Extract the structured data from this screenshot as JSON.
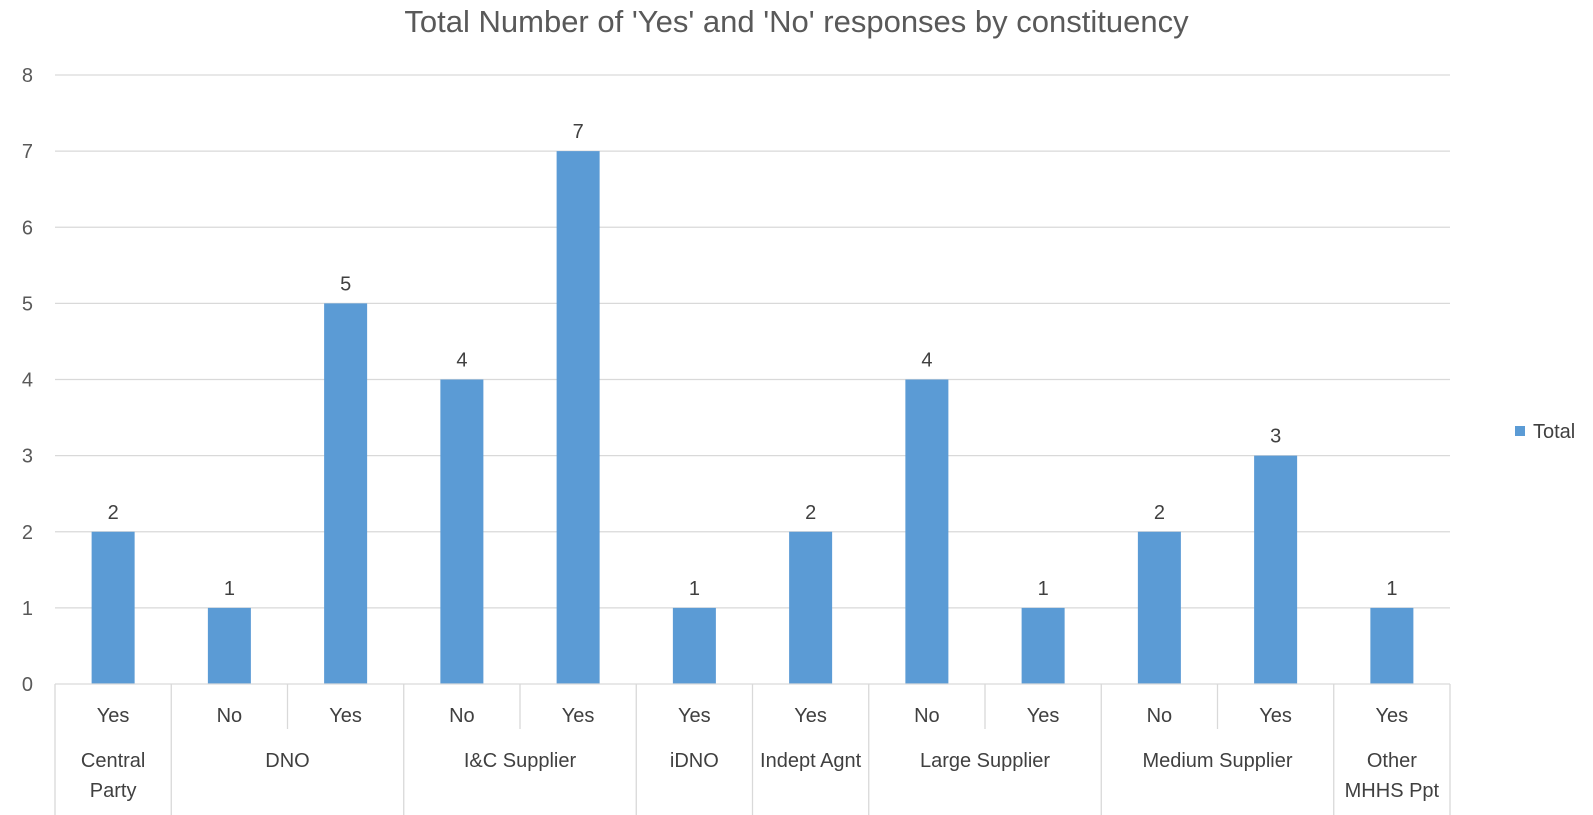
{
  "chart_data": {
    "type": "bar",
    "title": "Total Number of 'Yes' and 'No' responses by constituency",
    "xlabel": "",
    "ylabel": "",
    "ylim": [
      0,
      8
    ],
    "yticks": [
      "0",
      "1",
      "2",
      "3",
      "4",
      "5",
      "6",
      "7",
      "8"
    ],
    "grid": true,
    "legend_position": "right",
    "bar_color": "#5B9BD5",
    "groups": [
      {
        "label": [
          "Central",
          "Party"
        ],
        "categories": [
          "Yes"
        ]
      },
      {
        "label": [
          "DNO"
        ],
        "categories": [
          "No",
          "Yes"
        ]
      },
      {
        "label": [
          "I&C Supplier"
        ],
        "categories": [
          "No",
          "Yes"
        ]
      },
      {
        "label": [
          "iDNO"
        ],
        "categories": [
          "Yes"
        ]
      },
      {
        "label": [
          "Indept Agnt"
        ],
        "categories": [
          "Yes"
        ]
      },
      {
        "label": [
          "Large Supplier"
        ],
        "categories": [
          "No",
          "Yes"
        ]
      },
      {
        "label": [
          "Medium Supplier"
        ],
        "categories": [
          "No",
          "Yes"
        ]
      },
      {
        "label": [
          "Other",
          "MHHS Ppt"
        ],
        "categories": [
          "Yes"
        ]
      }
    ],
    "series": [
      {
        "name": "Total",
        "values": [
          2,
          1,
          5,
          4,
          7,
          1,
          2,
          4,
          1,
          2,
          3,
          1
        ]
      }
    ]
  }
}
